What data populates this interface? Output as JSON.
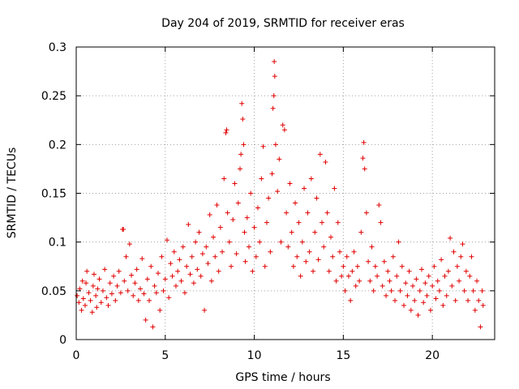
{
  "chart_data": {
    "type": "scatter",
    "title": "Day 204 of 2019, SRMTID for receiver eras",
    "xlabel": "GPS time / hours",
    "ylabel": "SRMTID / TECUs",
    "xlim": [
      0,
      23.5
    ],
    "ylim": [
      0,
      0.3
    ],
    "x_ticks": [
      0,
      5,
      10,
      15,
      20
    ],
    "x_tick_labels": [
      "0",
      "5",
      "10",
      "15",
      "20"
    ],
    "y_ticks": [
      0,
      0.05,
      0.1,
      0.15,
      0.2,
      0.25,
      0.3
    ],
    "y_tick_labels": [
      "0",
      "0.05",
      "0.1",
      "0.15",
      "0.2",
      "0.25",
      "0.3"
    ],
    "grid": true,
    "marker": "+",
    "color": "#e00000",
    "series": [
      {
        "name": "eras",
        "points": [
          [
            0.05,
            0.045
          ],
          [
            0.15,
            0.038
          ],
          [
            0.2,
            0.052
          ],
          [
            0.3,
            0.03
          ],
          [
            0.35,
            0.06
          ],
          [
            0.4,
            0.042
          ],
          [
            0.5,
            0.035
          ],
          [
            0.55,
            0.058
          ],
          [
            0.6,
            0.07
          ],
          [
            0.7,
            0.048
          ],
          [
            0.8,
            0.04
          ],
          [
            0.9,
            0.028
          ],
          [
            0.95,
            0.055
          ],
          [
            1.0,
            0.067
          ],
          [
            1.1,
            0.045
          ],
          [
            1.15,
            0.033
          ],
          [
            1.2,
            0.052
          ],
          [
            1.3,
            0.062
          ],
          [
            1.4,
            0.038
          ],
          [
            1.5,
            0.05
          ],
          [
            1.6,
            0.072
          ],
          [
            1.7,
            0.043
          ],
          [
            1.8,
            0.035
          ],
          [
            1.9,
            0.058
          ],
          [
            2.0,
            0.047
          ],
          [
            2.1,
            0.065
          ],
          [
            2.2,
            0.04
          ],
          [
            2.3,
            0.055
          ],
          [
            2.4,
            0.07
          ],
          [
            2.5,
            0.048
          ],
          [
            2.6,
            0.113
          ],
          [
            2.65,
            0.113
          ],
          [
            2.7,
            0.06
          ],
          [
            2.8,
            0.085
          ],
          [
            2.9,
            0.05
          ],
          [
            3.0,
            0.098
          ],
          [
            3.1,
            0.066
          ],
          [
            3.2,
            0.045
          ],
          [
            3.3,
            0.058
          ],
          [
            3.4,
            0.072
          ],
          [
            3.5,
            0.04
          ],
          [
            3.6,
            0.052
          ],
          [
            3.7,
            0.083
          ],
          [
            3.8,
            0.047
          ],
          [
            3.9,
            0.02
          ],
          [
            4.0,
            0.062
          ],
          [
            4.1,
            0.04
          ],
          [
            4.2,
            0.075
          ],
          [
            4.3,
            0.013
          ],
          [
            4.4,
            0.055
          ],
          [
            4.5,
            0.048
          ],
          [
            4.6,
            0.068
          ],
          [
            4.7,
            0.03
          ],
          [
            4.8,
            0.085
          ],
          [
            4.9,
            0.05
          ],
          [
            5.0,
            0.062
          ],
          [
            5.1,
            0.102
          ],
          [
            5.2,
            0.043
          ],
          [
            5.3,
            0.078
          ],
          [
            5.4,
            0.065
          ],
          [
            5.5,
            0.09
          ],
          [
            5.6,
            0.055
          ],
          [
            5.7,
            0.07
          ],
          [
            5.8,
            0.082
          ],
          [
            5.9,
            0.06
          ],
          [
            6.0,
            0.095
          ],
          [
            6.1,
            0.048
          ],
          [
            6.2,
            0.075
          ],
          [
            6.3,
            0.118
          ],
          [
            6.4,
            0.067
          ],
          [
            6.5,
            0.085
          ],
          [
            6.6,
            0.058
          ],
          [
            6.7,
            0.1
          ],
          [
            6.8,
            0.072
          ],
          [
            6.9,
            0.11
          ],
          [
            7.0,
            0.065
          ],
          [
            7.1,
            0.088
          ],
          [
            7.2,
            0.03
          ],
          [
            7.3,
            0.095
          ],
          [
            7.4,
            0.078
          ],
          [
            7.5,
            0.128
          ],
          [
            7.6,
            0.06
          ],
          [
            7.7,
            0.105
          ],
          [
            7.8,
            0.085
          ],
          [
            7.9,
            0.138
          ],
          [
            8.0,
            0.07
          ],
          [
            8.1,
            0.115
          ],
          [
            8.2,
            0.09
          ],
          [
            8.3,
            0.165
          ],
          [
            8.4,
            0.212
          ],
          [
            8.45,
            0.215
          ],
          [
            8.5,
            0.13
          ],
          [
            8.6,
            0.1
          ],
          [
            8.7,
            0.075
          ],
          [
            8.8,
            0.123
          ],
          [
            8.9,
            0.16
          ],
          [
            9.0,
            0.088
          ],
          [
            9.1,
            0.14
          ],
          [
            9.2,
            0.175
          ],
          [
            9.25,
            0.19
          ],
          [
            9.3,
            0.242
          ],
          [
            9.35,
            0.226
          ],
          [
            9.4,
            0.2
          ],
          [
            9.45,
            0.11
          ],
          [
            9.5,
            0.08
          ],
          [
            9.6,
            0.125
          ],
          [
            9.7,
            0.095
          ],
          [
            9.8,
            0.15
          ],
          [
            9.9,
            0.07
          ],
          [
            10.0,
            0.115
          ],
          [
            10.1,
            0.085
          ],
          [
            10.2,
            0.135
          ],
          [
            10.3,
            0.1
          ],
          [
            10.4,
            0.165
          ],
          [
            10.5,
            0.198
          ],
          [
            10.6,
            0.075
          ],
          [
            10.7,
            0.12
          ],
          [
            10.8,
            0.145
          ],
          [
            10.9,
            0.09
          ],
          [
            11.0,
            0.17
          ],
          [
            11.05,
            0.237
          ],
          [
            11.1,
            0.25
          ],
          [
            11.12,
            0.285
          ],
          [
            11.15,
            0.27
          ],
          [
            11.2,
            0.2
          ],
          [
            11.3,
            0.152
          ],
          [
            11.4,
            0.185
          ],
          [
            11.5,
            0.1
          ],
          [
            11.6,
            0.22
          ],
          [
            11.7,
            0.215
          ],
          [
            11.8,
            0.13
          ],
          [
            11.9,
            0.095
          ],
          [
            12.0,
            0.16
          ],
          [
            12.1,
            0.11
          ],
          [
            12.2,
            0.075
          ],
          [
            12.3,
            0.14
          ],
          [
            12.4,
            0.085
          ],
          [
            12.5,
            0.12
          ],
          [
            12.6,
            0.065
          ],
          [
            12.7,
            0.1
          ],
          [
            12.8,
            0.155
          ],
          [
            12.9,
            0.08
          ],
          [
            13.0,
            0.13
          ],
          [
            13.1,
            0.09
          ],
          [
            13.2,
            0.165
          ],
          [
            13.3,
            0.07
          ],
          [
            13.4,
            0.11
          ],
          [
            13.5,
            0.145
          ],
          [
            13.6,
            0.082
          ],
          [
            13.7,
            0.19
          ],
          [
            13.8,
            0.12
          ],
          [
            13.9,
            0.095
          ],
          [
            14.0,
            0.182
          ],
          [
            14.1,
            0.13
          ],
          [
            14.2,
            0.07
          ],
          [
            14.3,
            0.105
          ],
          [
            14.4,
            0.085
          ],
          [
            14.5,
            0.155
          ],
          [
            14.6,
            0.06
          ],
          [
            14.7,
            0.12
          ],
          [
            14.8,
            0.09
          ],
          [
            14.9,
            0.065
          ],
          [
            15.0,
            0.075
          ],
          [
            15.1,
            0.05
          ],
          [
            15.2,
            0.085
          ],
          [
            15.3,
            0.065
          ],
          [
            15.4,
            0.04
          ],
          [
            15.5,
            0.07
          ],
          [
            15.6,
            0.09
          ],
          [
            15.7,
            0.055
          ],
          [
            15.8,
            0.075
          ],
          [
            15.9,
            0.06
          ],
          [
            16.0,
            0.11
          ],
          [
            16.1,
            0.186
          ],
          [
            16.15,
            0.202
          ],
          [
            16.2,
            0.175
          ],
          [
            16.3,
            0.13
          ],
          [
            16.4,
            0.08
          ],
          [
            16.5,
            0.06
          ],
          [
            16.6,
            0.095
          ],
          [
            16.7,
            0.05
          ],
          [
            16.8,
            0.075
          ],
          [
            16.9,
            0.065
          ],
          [
            17.0,
            0.138
          ],
          [
            17.1,
            0.12
          ],
          [
            17.2,
            0.055
          ],
          [
            17.3,
            0.08
          ],
          [
            17.4,
            0.045
          ],
          [
            17.5,
            0.07
          ],
          [
            17.6,
            0.06
          ],
          [
            17.7,
            0.05
          ],
          [
            17.8,
            0.085
          ],
          [
            17.9,
            0.04
          ],
          [
            18.0,
            0.065
          ],
          [
            18.1,
            0.1
          ],
          [
            18.2,
            0.05
          ],
          [
            18.3,
            0.075
          ],
          [
            18.4,
            0.035
          ],
          [
            18.5,
            0.058
          ],
          [
            18.6,
            0.045
          ],
          [
            18.7,
            0.07
          ],
          [
            18.8,
            0.03
          ],
          [
            18.9,
            0.055
          ],
          [
            19.0,
            0.04
          ],
          [
            19.1,
            0.062
          ],
          [
            19.2,
            0.025
          ],
          [
            19.3,
            0.05
          ],
          [
            19.4,
            0.072
          ],
          [
            19.5,
            0.038
          ],
          [
            19.6,
            0.058
          ],
          [
            19.7,
            0.045
          ],
          [
            19.8,
            0.065
          ],
          [
            19.9,
            0.03
          ],
          [
            20.0,
            0.055
          ],
          [
            20.1,
            0.075
          ],
          [
            20.2,
            0.042
          ],
          [
            20.3,
            0.06
          ],
          [
            20.4,
            0.05
          ],
          [
            20.5,
            0.082
          ],
          [
            20.6,
            0.035
          ],
          [
            20.7,
            0.065
          ],
          [
            20.8,
            0.045
          ],
          [
            20.9,
            0.07
          ],
          [
            21.0,
            0.104
          ],
          [
            21.1,
            0.055
          ],
          [
            21.2,
            0.09
          ],
          [
            21.3,
            0.04
          ],
          [
            21.4,
            0.075
          ],
          [
            21.5,
            0.06
          ],
          [
            21.6,
            0.085
          ],
          [
            21.7,
            0.098
          ],
          [
            21.8,
            0.05
          ],
          [
            21.9,
            0.07
          ],
          [
            22.0,
            0.04
          ],
          [
            22.1,
            0.065
          ],
          [
            22.2,
            0.085
          ],
          [
            22.3,
            0.05
          ],
          [
            22.4,
            0.03
          ],
          [
            22.5,
            0.06
          ],
          [
            22.6,
            0.04
          ],
          [
            22.7,
            0.013
          ],
          [
            22.8,
            0.05
          ],
          [
            22.85,
            0.035
          ]
        ]
      }
    ]
  }
}
